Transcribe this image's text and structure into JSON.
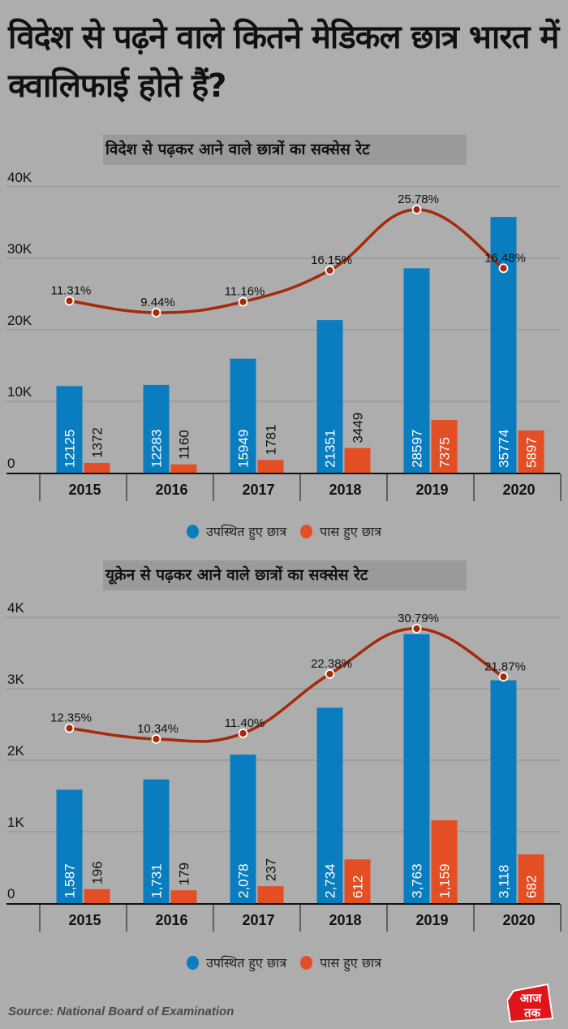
{
  "title": "विदेश से पढ़ने वाले कितने मेडिकल छात्र भारत में क्वालिफाई होते हैं?",
  "colors": {
    "appeared": "#0a7dc0",
    "passed": "#e44e25",
    "rate_line": "#a52a0a",
    "background": "#adadad"
  },
  "legend": {
    "appeared_label": "उपस्थित हुए छात्र",
    "passed_label": "पास हुए छात्र"
  },
  "source": "Source: National Board of Examination",
  "logo": {
    "line1": "आज",
    "line2": "तक"
  },
  "chart_data": [
    {
      "type": "bar",
      "title": "विदेश से पढ़कर आने वाले छात्रों का सक्सेस रेट",
      "categories": [
        "2015",
        "2016",
        "2017",
        "2018",
        "2019",
        "2020"
      ],
      "ylim": [
        0,
        40000
      ],
      "yticks": [
        0,
        10000,
        20000,
        30000,
        40000
      ],
      "ytick_labels": [
        "0",
        "10K",
        "20K",
        "30K",
        "40K"
      ],
      "grid": true,
      "legend_position": "bottom",
      "series": [
        {
          "name": "उपस्थित हुए छात्र",
          "key": "appeared",
          "values": [
            12125,
            12283,
            15949,
            21351,
            28597,
            35774
          ],
          "labels": [
            "12125",
            "12283",
            "15949",
            "21351",
            "28597",
            "35774"
          ]
        },
        {
          "name": "पास हुए छात्र",
          "key": "passed",
          "values": [
            1372,
            1160,
            1781,
            3449,
            7375,
            5897
          ],
          "labels": [
            "1372",
            "1160",
            "1781",
            "3449",
            "7375",
            "5897"
          ]
        }
      ],
      "rate_line": {
        "name": "सक्सेस रेट",
        "values": [
          11.31,
          9.44,
          11.16,
          16.15,
          25.78,
          16.48
        ],
        "labels": [
          "11.31%",
          "9.44%",
          "11.16%",
          "16.15%",
          "25.78%",
          "16.48%"
        ]
      }
    },
    {
      "type": "bar",
      "title": "यूक्रेन से पढ़कर आने वाले छात्रों का सक्सेस रेट",
      "categories": [
        "2015",
        "2016",
        "2017",
        "2018",
        "2019",
        "2020"
      ],
      "ylim": [
        0,
        4000
      ],
      "yticks": [
        0,
        1000,
        2000,
        3000,
        4000
      ],
      "ytick_labels": [
        "0",
        "1K",
        "2K",
        "3K",
        "4K"
      ],
      "grid": true,
      "legend_position": "bottom",
      "series": [
        {
          "name": "उपस्थित हुए छात्र",
          "key": "appeared",
          "values": [
            1587,
            1731,
            2078,
            2734,
            3763,
            3118
          ],
          "labels": [
            "1,587",
            "1,731",
            "2,078",
            "2,734",
            "3,763",
            "3,118"
          ]
        },
        {
          "name": "पास हुए छात्र",
          "key": "passed",
          "values": [
            196,
            179,
            237,
            612,
            1159,
            682
          ],
          "labels": [
            "196",
            "179",
            "237",
            "612",
            "1,159",
            "682"
          ]
        }
      ],
      "rate_line": {
        "name": "सक्सेस रेट",
        "values": [
          12.35,
          10.34,
          11.4,
          22.38,
          30.79,
          21.87
        ],
        "labels": [
          "12.35%",
          "10.34%",
          "11.40%",
          "22.38%",
          "30.79%",
          "21.87%"
        ]
      }
    }
  ]
}
